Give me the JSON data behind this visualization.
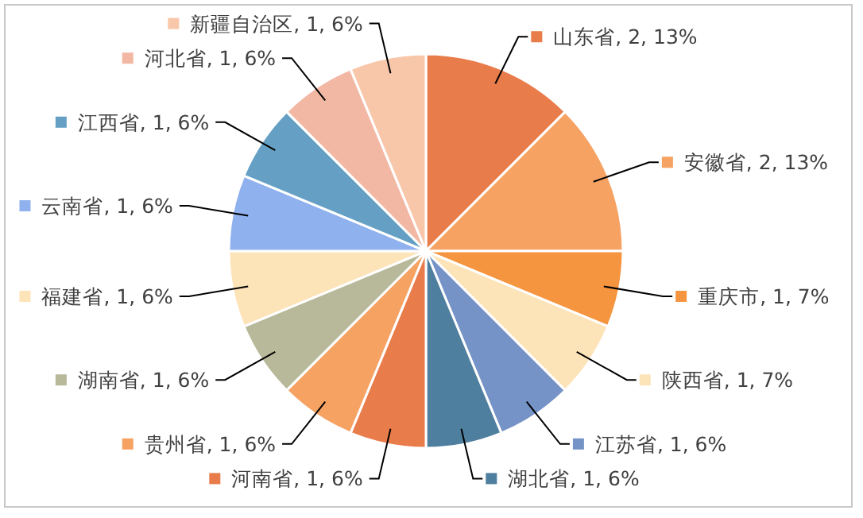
{
  "chart_data": {
    "type": "pie",
    "legend": "right",
    "categories": [
      "山东省",
      "安徽省",
      "重庆市",
      "陕西省",
      "江苏省",
      "湖北省",
      "河南省",
      "贵州省",
      "湖南省",
      "福建省",
      "云南省",
      "江西省",
      "河北省",
      "新疆自治区"
    ],
    "values": [
      2,
      2,
      1,
      1,
      1,
      1,
      1,
      1,
      1,
      1,
      1,
      1,
      1,
      1
    ],
    "value_labels": [
      "2, 13%",
      "2, 13%",
      "1, 7%",
      "1, 7%",
      "1, 6%",
      "1, 6%",
      "1, 6%",
      "1, 6%",
      "1, 6%",
      "1, 6%",
      "1, 6%",
      "1, 6%",
      "1, 6%",
      "1, 6%"
    ],
    "colors": [
      "#e97c4b",
      "#f5a263",
      "#f59540",
      "#fde3b8",
      "#7593c6",
      "#4f7f9e",
      "#e97c4b",
      "#f5a263",
      "#b8b99a",
      "#fde3b8",
      "#8fb1ee",
      "#65a0c4",
      "#f2b8a4",
      "#f8c7aa"
    ]
  }
}
